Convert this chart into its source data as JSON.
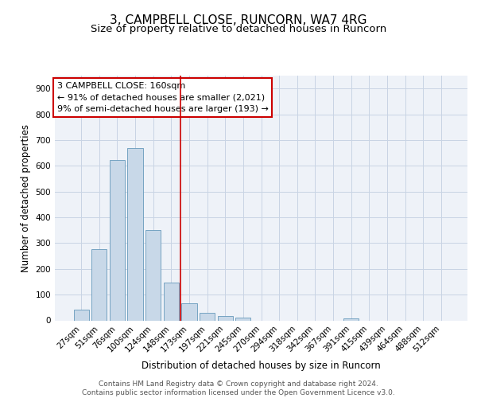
{
  "title1": "3, CAMPBELL CLOSE, RUNCORN, WA7 4RG",
  "title2": "Size of property relative to detached houses in Runcorn",
  "xlabel": "Distribution of detached houses by size in Runcorn",
  "ylabel": "Number of detached properties",
  "categories": [
    "27sqm",
    "51sqm",
    "76sqm",
    "100sqm",
    "124sqm",
    "148sqm",
    "173sqm",
    "197sqm",
    "221sqm",
    "245sqm",
    "270sqm",
    "294sqm",
    "318sqm",
    "342sqm",
    "367sqm",
    "391sqm",
    "415sqm",
    "439sqm",
    "464sqm",
    "488sqm",
    "512sqm"
  ],
  "values": [
    42,
    278,
    622,
    670,
    350,
    148,
    65,
    28,
    18,
    12,
    0,
    0,
    0,
    0,
    0,
    9,
    0,
    0,
    0,
    0,
    0
  ],
  "bar_color": "#c8d8e8",
  "bar_edge_color": "#6699bb",
  "grid_color": "#c8d4e4",
  "background_color": "#eef2f8",
  "vline_x": 5.5,
  "vline_color": "#cc0000",
  "annotation_line1": "3 CAMPBELL CLOSE: 160sqm",
  "annotation_line2": "← 91% of detached houses are smaller (2,021)",
  "annotation_line3": "9% of semi-detached houses are larger (193) →",
  "annotation_box_color": "#ffffff",
  "annotation_box_edge_color": "#cc0000",
  "ylim": [
    0,
    950
  ],
  "yticks": [
    0,
    100,
    200,
    300,
    400,
    500,
    600,
    700,
    800,
    900
  ],
  "footer_text": "Contains HM Land Registry data © Crown copyright and database right 2024.\nContains public sector information licensed under the Open Government Licence v3.0.",
  "title1_fontsize": 11,
  "title2_fontsize": 9.5,
  "tick_fontsize": 7.5,
  "label_fontsize": 8.5,
  "annotation_fontsize": 8,
  "footer_fontsize": 6.5
}
